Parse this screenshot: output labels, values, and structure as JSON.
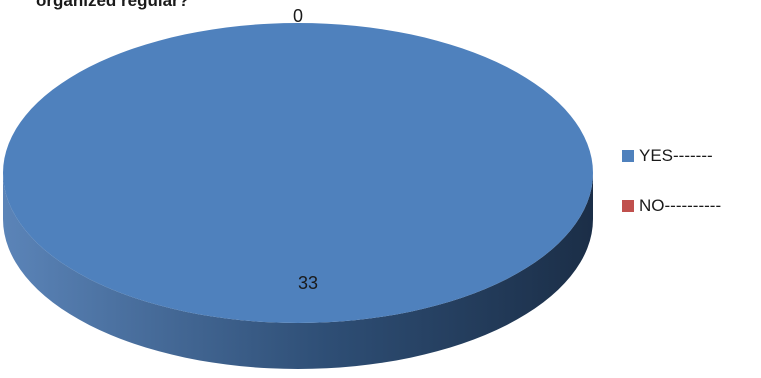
{
  "chart_data": {
    "type": "pie",
    "title": "organized regular?",
    "categories": [
      "YES-------",
      "NO----------"
    ],
    "values": [
      33,
      0
    ],
    "data_labels": [
      "33",
      "0"
    ],
    "colors": [
      "#4f81bd",
      "#c0504d"
    ],
    "style": "3d",
    "legend_position": "right"
  }
}
